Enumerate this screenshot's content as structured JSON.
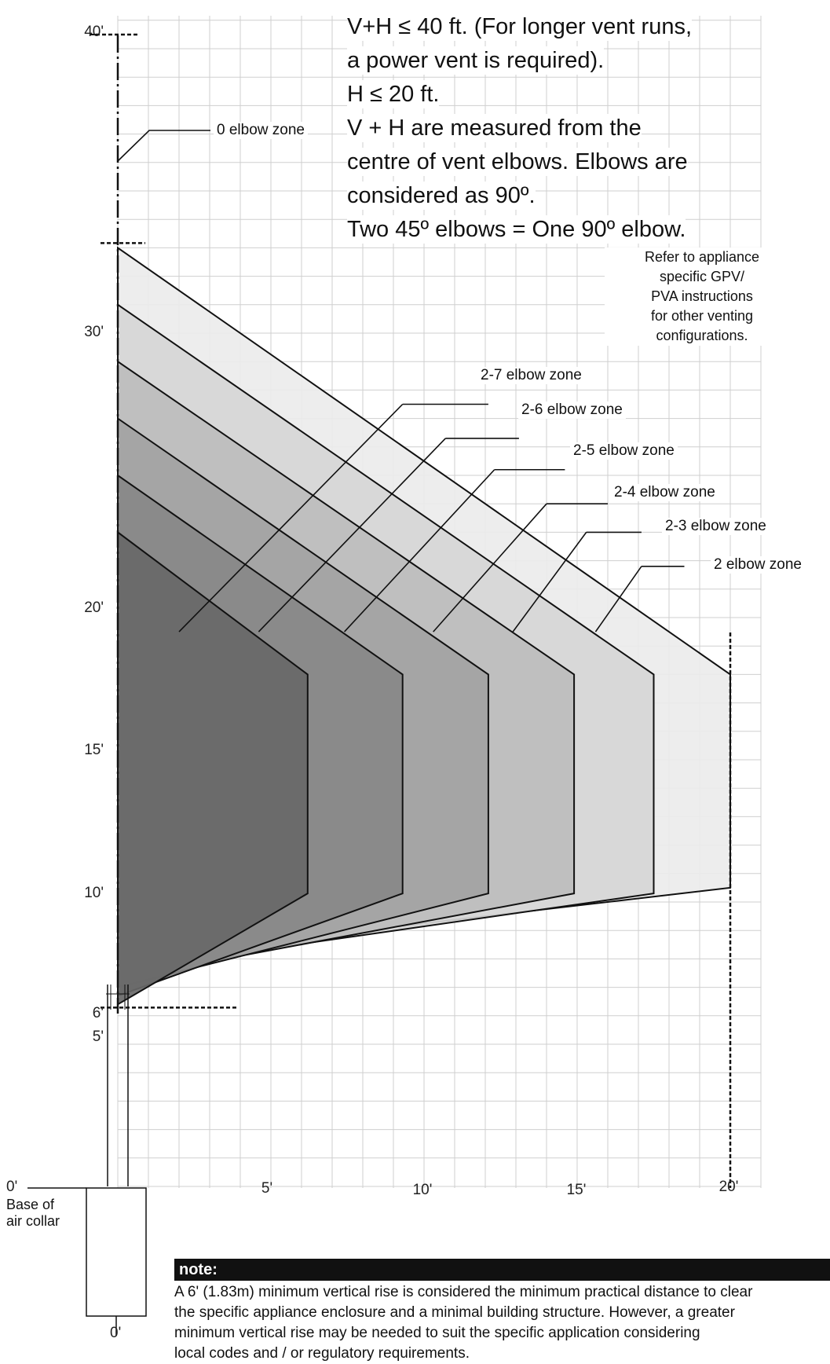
{
  "chart_data": {
    "type": "area",
    "xlabel": "",
    "ylabel": "",
    "x_ticks": [
      "5'",
      "10'",
      "15'",
      "20'"
    ],
    "y_ticks": [
      "40'",
      "30'",
      "20'",
      "15'",
      "10'",
      "6'",
      "5'"
    ],
    "xlim": [
      0,
      21
    ],
    "ylim": [
      0,
      40
    ],
    "zones": [
      {
        "name": "2 elbow zone",
        "polygon": [
          [
            0,
            8
          ],
          [
            20,
            10.5
          ],
          [
            20,
            18
          ],
          [
            0,
            33
          ]
        ]
      },
      {
        "name": "2-3 elbow zone",
        "polygon": [
          [
            0,
            7.6
          ],
          [
            17.5,
            10.3
          ],
          [
            17.5,
            18
          ],
          [
            0,
            31
          ]
        ]
      },
      {
        "name": "2-4 elbow zone",
        "polygon": [
          [
            0,
            7.3
          ],
          [
            14.9,
            10.3
          ],
          [
            14.9,
            18
          ],
          [
            0,
            29
          ]
        ]
      },
      {
        "name": "2-5 elbow zone",
        "polygon": [
          [
            0,
            7
          ],
          [
            12.1,
            10.3
          ],
          [
            12.1,
            18
          ],
          [
            0,
            27
          ]
        ]
      },
      {
        "name": "2-6 elbow zone",
        "polygon": [
          [
            0,
            6.7
          ],
          [
            9.3,
            10.3
          ],
          [
            9.3,
            18
          ],
          [
            0,
            25
          ]
        ]
      },
      {
        "name": "2-7 elbow zone",
        "polygon": [
          [
            0,
            6.4
          ],
          [
            6.2,
            10.3
          ],
          [
            6.2,
            18
          ],
          [
            0,
            23
          ]
        ]
      }
    ],
    "zero_elbow_zone": {
      "name": "0 elbow zone",
      "y_range": [
        33,
        40
      ]
    },
    "h_limit": 20,
    "min_vertical_rise": 6
  },
  "labels": {
    "zero_elbow": "0 elbow zone",
    "zone_2": "2 elbow zone",
    "zone_2_3": "2-3 elbow zone",
    "zone_2_4": "2-4 elbow zone",
    "zone_2_5": "2-5 elbow zone",
    "zone_2_6": "2-6 elbow zone",
    "zone_2_7": "2-7 elbow zone"
  },
  "rules": [
    "V+H ≤ 40 ft. (For longer vent runs,",
    "a power vent is required).",
    "H ≤ 20 ft.",
    "V + H are measured from the",
    "centre of vent elbows. Elbows are",
    "considered as 90º.",
    "Two 45º elbows = One 90º elbow."
  ],
  "refer_note": [
    "Refer to appliance",
    "specific GPV/",
    "PVA instructions",
    "for other venting",
    "configurations."
  ],
  "ticks": {
    "y40": "40'",
    "y30": "30'",
    "y20": "20'",
    "y15": "15'",
    "y10": "10'",
    "y6": "6'",
    "y5": "5'",
    "y0": "0'",
    "x5": "5'",
    "x10": "10'",
    "x15": "15'",
    "x20": "20'",
    "x0": "0'"
  },
  "base_label": [
    "Base of",
    "air collar"
  ],
  "note": {
    "title": "note:",
    "lines": [
      "A 6' (1.83m) minimum vertical rise is considered the minimum practical distance to clear",
      "the specific appliance enclosure and a minimal building structure. However, a greater",
      "minimum vertical rise may be needed to suit the specific application considering",
      "local codes and / or regulatory requirements."
    ]
  }
}
